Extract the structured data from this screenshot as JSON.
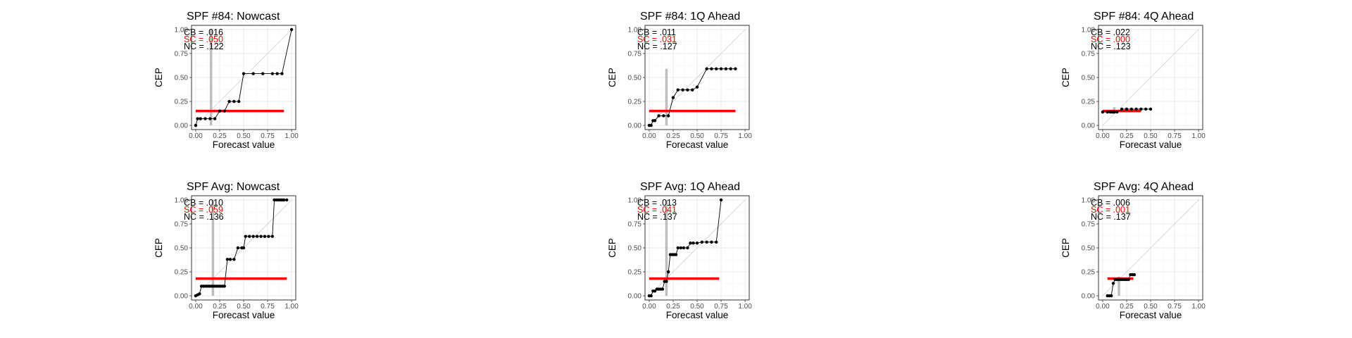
{
  "colors": {
    "panel_background": "#ffffff",
    "grid_major": "#ebebeb",
    "grid_minor": "#f5f5f5",
    "panel_border": "#333333",
    "tick_text": "#4d4d4d",
    "axis_title": "#000000",
    "series_line": "#000000",
    "base_rate_line": "#ff0000",
    "mean_forecast_line": "#bebebe",
    "identity_line": "#d9d9d9",
    "cb_text": "#000000",
    "sc_text": "#ff0000",
    "nc_text": "#000000"
  },
  "chart_data": [
    {
      "type": "line",
      "title": "SPF #84: Nowcast",
      "xlabel": "Forecast value",
      "ylabel": "CEP",
      "xlim": [
        0,
        1
      ],
      "ylim": [
        0,
        1
      ],
      "ticks": [
        "0.00",
        "0.25",
        "0.50",
        "0.75",
        "1.00"
      ],
      "grid": true,
      "annotations": [
        "CB = .016",
        "SC = .050",
        "NC = .122"
      ],
      "base_rate": {
        "y": 0.15,
        "x": [
          0,
          0.92
        ]
      },
      "mean_forecast": {
        "x": 0.16,
        "y": [
          0,
          1
        ]
      },
      "points": {
        "x": [
          0,
          0.02,
          0.05,
          0.1,
          0.15,
          0.2,
          0.25,
          0.3,
          0.35,
          0.4,
          0.45,
          0.5,
          0.6,
          0.7,
          0.8,
          0.85,
          0.9,
          1.0
        ],
        "y": [
          0,
          0.07,
          0.07,
          0.07,
          0.07,
          0.07,
          0.15,
          0.15,
          0.25,
          0.25,
          0.25,
          0.54,
          0.54,
          0.54,
          0.54,
          0.54,
          0.54,
          1.0
        ]
      }
    },
    {
      "type": "line",
      "title": "SPF #84: 1Q Ahead",
      "xlabel": "Forecast value",
      "ylabel": "CEP",
      "xlim": [
        0,
        1
      ],
      "ylim": [
        0,
        1
      ],
      "ticks": [
        "0.00",
        "0.25",
        "0.50",
        "0.75",
        "1.00"
      ],
      "grid": true,
      "annotations": [
        "CB = .011",
        "SC = .031",
        "NC = .127"
      ],
      "base_rate": {
        "y": 0.15,
        "x": [
          0,
          0.9
        ]
      },
      "mean_forecast": {
        "x": 0.18,
        "y": [
          0,
          0.59
        ]
      },
      "points": {
        "x": [
          0,
          0.02,
          0.04,
          0.06,
          0.1,
          0.15,
          0.2,
          0.25,
          0.3,
          0.35,
          0.4,
          0.45,
          0.5,
          0.6,
          0.65,
          0.7,
          0.75,
          0.8,
          0.85,
          0.9
        ],
        "y": [
          0,
          0,
          0.05,
          0.05,
          0.1,
          0.1,
          0.1,
          0.29,
          0.37,
          0.37,
          0.37,
          0.37,
          0.4,
          0.59,
          0.59,
          0.59,
          0.59,
          0.59,
          0.59,
          0.59
        ]
      }
    },
    {
      "type": "line",
      "title": "SPF #84: 4Q Ahead",
      "xlabel": "Forecast value",
      "ylabel": "CEP",
      "xlim": [
        0,
        1
      ],
      "ylim": [
        0,
        1
      ],
      "ticks": [
        "0.00",
        "0.25",
        "0.50",
        "0.75",
        "1.00"
      ],
      "grid": true,
      "annotations": [
        "CB = .022",
        "SC = .000",
        "NC = .123"
      ],
      "base_rate": {
        "y": 0.15,
        "x": [
          0,
          0.4
        ]
      },
      "mean_forecast": {
        "x": 0.12,
        "y": [
          0.12,
          0.19
        ]
      },
      "points": {
        "x": [
          0,
          0.05,
          0.08,
          0.1,
          0.12,
          0.15,
          0.2,
          0.25,
          0.3,
          0.35,
          0.4,
          0.45,
          0.5
        ],
        "y": [
          0.14,
          0.14,
          0.14,
          0.14,
          0.14,
          0.14,
          0.17,
          0.17,
          0.17,
          0.17,
          0.17,
          0.17,
          0.17
        ]
      }
    },
    {
      "type": "line",
      "title": "SPF Avg: Nowcast",
      "xlabel": "Forecast value",
      "ylabel": "CEP",
      "xlim": [
        0,
        1
      ],
      "ylim": [
        0,
        1
      ],
      "ticks": [
        "0.00",
        "0.25",
        "0.50",
        "0.75",
        "1.00"
      ],
      "grid": true,
      "annotations": [
        "CB = .010",
        "SC = .059",
        "NC = .136"
      ],
      "base_rate": {
        "y": 0.18,
        "x": [
          0,
          0.95
        ]
      },
      "mean_forecast": {
        "x": 0.18,
        "y": [
          0,
          1
        ]
      },
      "points": {
        "x": [
          0,
          0.02,
          0.04,
          0.06,
          0.08,
          0.1,
          0.12,
          0.14,
          0.16,
          0.18,
          0.2,
          0.22,
          0.24,
          0.26,
          0.28,
          0.3,
          0.33,
          0.36,
          0.4,
          0.44,
          0.48,
          0.5,
          0.52,
          0.56,
          0.6,
          0.64,
          0.68,
          0.72,
          0.76,
          0.8,
          0.82,
          0.84,
          0.86,
          0.88,
          0.9,
          0.92,
          0.95
        ],
        "y": [
          0,
          0.01,
          0.02,
          0.1,
          0.1,
          0.1,
          0.1,
          0.1,
          0.1,
          0.1,
          0.1,
          0.1,
          0.1,
          0.1,
          0.1,
          0.1,
          0.38,
          0.38,
          0.38,
          0.5,
          0.5,
          0.5,
          0.62,
          0.62,
          0.62,
          0.62,
          0.62,
          0.62,
          0.62,
          0.62,
          1.0,
          1.0,
          1.0,
          1.0,
          1.0,
          1.0,
          1.0
        ]
      }
    },
    {
      "type": "line",
      "title": "SPF Avg: 1Q Ahead",
      "xlabel": "Forecast value",
      "ylabel": "CEP",
      "xlim": [
        0,
        1
      ],
      "ylim": [
        0,
        1
      ],
      "ticks": [
        "0.00",
        "0.25",
        "0.50",
        "0.75",
        "1.00"
      ],
      "grid": true,
      "annotations": [
        "CB = .013",
        "SC = .041",
        "NC = .137"
      ],
      "base_rate": {
        "y": 0.18,
        "x": [
          0,
          0.73
        ]
      },
      "mean_forecast": {
        "x": 0.18,
        "y": [
          0,
          1
        ]
      },
      "points": {
        "x": [
          0,
          0.02,
          0.04,
          0.06,
          0.08,
          0.1,
          0.12,
          0.14,
          0.16,
          0.18,
          0.2,
          0.22,
          0.24,
          0.26,
          0.28,
          0.3,
          0.33,
          0.36,
          0.4,
          0.43,
          0.46,
          0.5,
          0.55,
          0.6,
          0.65,
          0.7,
          0.75
        ],
        "y": [
          0,
          0,
          0.05,
          0.05,
          0.07,
          0.07,
          0.07,
          0.07,
          0.15,
          0.15,
          0.25,
          0.43,
          0.43,
          0.43,
          0.43,
          0.5,
          0.5,
          0.5,
          0.5,
          0.55,
          0.55,
          0.55,
          0.56,
          0.56,
          0.56,
          0.56,
          1.0
        ]
      }
    },
    {
      "type": "line",
      "title": "SPF Avg: 4Q Ahead",
      "xlabel": "Forecast value",
      "ylabel": "CEP",
      "xlim": [
        0,
        1
      ],
      "ylim": [
        0,
        1
      ],
      "ticks": [
        "0.00",
        "0.25",
        "0.50",
        "0.75",
        "1.00"
      ],
      "grid": true,
      "annotations": [
        "CB = .006",
        "SC = .001",
        "NC = .137"
      ],
      "base_rate": {
        "y": 0.18,
        "x": [
          0.05,
          0.32
        ]
      },
      "mean_forecast": {
        "x": 0.17,
        "y": [
          0,
          0.2
        ]
      },
      "points": {
        "x": [
          0.05,
          0.07,
          0.09,
          0.11,
          0.13,
          0.15,
          0.17,
          0.19,
          0.21,
          0.23,
          0.25,
          0.27,
          0.29,
          0.31,
          0.33
        ],
        "y": [
          0,
          0,
          0,
          0.13,
          0.17,
          0.17,
          0.17,
          0.17,
          0.17,
          0.17,
          0.17,
          0.17,
          0.22,
          0.22,
          0.22
        ]
      }
    }
  ]
}
